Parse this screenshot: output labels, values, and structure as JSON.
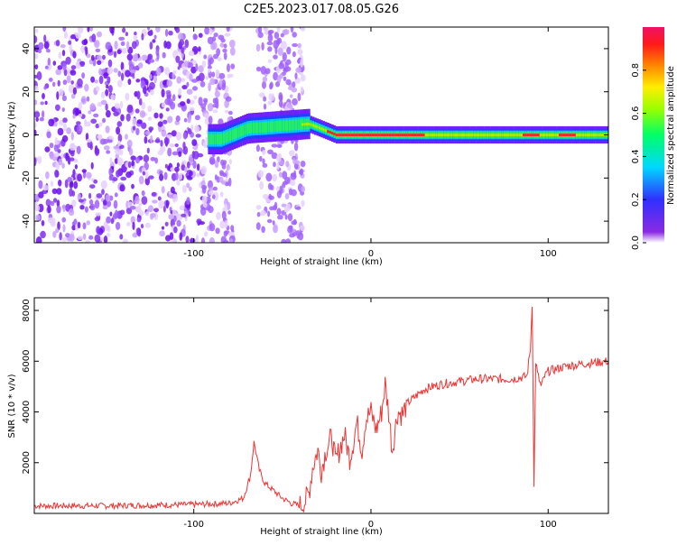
{
  "title": "C2E5.2023.017.08.05.G26",
  "chart_data": [
    {
      "type": "heatmap",
      "xlabel": "Height of straight line (km)",
      "ylabel": "Frequency (Hz)",
      "xlim": [
        -190,
        134
      ],
      "ylim": [
        -50,
        50
      ],
      "xticks": [
        -100,
        0,
        100
      ],
      "yticks": [
        -40,
        -20,
        0,
        20,
        40
      ],
      "colorbar": {
        "label": "Normalized spectral amplitude",
        "range": [
          0,
          1
        ],
        "ticks": [
          0.0,
          0.2,
          0.4,
          0.6,
          0.8
        ]
      },
      "description_points": [
        {
          "x": -190,
          "y_center": 0,
          "note": "noise"
        },
        {
          "x": -85,
          "y_center": -2
        },
        {
          "x": -70,
          "y_center": 3
        },
        {
          "x": -35,
          "y_center": 5
        },
        {
          "x": -20,
          "y_center": 0
        },
        {
          "x": 0,
          "y_center": 0
        },
        {
          "x": 50,
          "y_center": -1
        },
        {
          "x": 90,
          "y_center": -2
        },
        {
          "x": 134,
          "y_center": 0
        }
      ]
    },
    {
      "type": "line",
      "xlabel": "Height of straight line (km)",
      "ylabel": "SNR (10 * v/v)",
      "xlim": [
        -190,
        134
      ],
      "ylim": [
        0,
        8500
      ],
      "xticks": [
        -100,
        0,
        100
      ],
      "yticks": [
        2000,
        4000,
        6000,
        8000
      ],
      "color": "#ee3333",
      "series": [
        {
          "x": [
            -190,
            -150,
            -100,
            -80,
            -72,
            -68,
            -66,
            -63,
            -60,
            -55,
            -50,
            -45,
            -40,
            -37,
            -35,
            -33,
            -30,
            -28,
            -25,
            -22,
            -20,
            -17,
            -15,
            -12,
            -10,
            -8,
            -5,
            -3,
            0,
            3,
            6,
            8,
            10,
            12,
            15,
            18,
            20,
            25,
            30,
            40,
            50,
            60,
            70,
            80,
            88,
            90,
            91,
            92,
            93,
            94,
            96,
            98,
            100,
            110,
            120,
            134
          ],
          "y": [
            300,
            300,
            350,
            400,
            600,
            1500,
            2800,
            1700,
            1200,
            900,
            600,
            400,
            300,
            500,
            800,
            1800,
            2500,
            1700,
            2600,
            3000,
            2000,
            2700,
            3100,
            2200,
            2800,
            3600,
            2500,
            3700,
            4000,
            3300,
            4000,
            5100,
            4000,
            2500,
            4000,
            3900,
            4300,
            4600,
            4900,
            5100,
            5200,
            5300,
            5300,
            5300,
            5400,
            6500,
            8300,
            1000,
            6000,
            5500,
            5000,
            5400,
            5600,
            5800,
            5900,
            6000
          ]
        }
      ]
    }
  ]
}
